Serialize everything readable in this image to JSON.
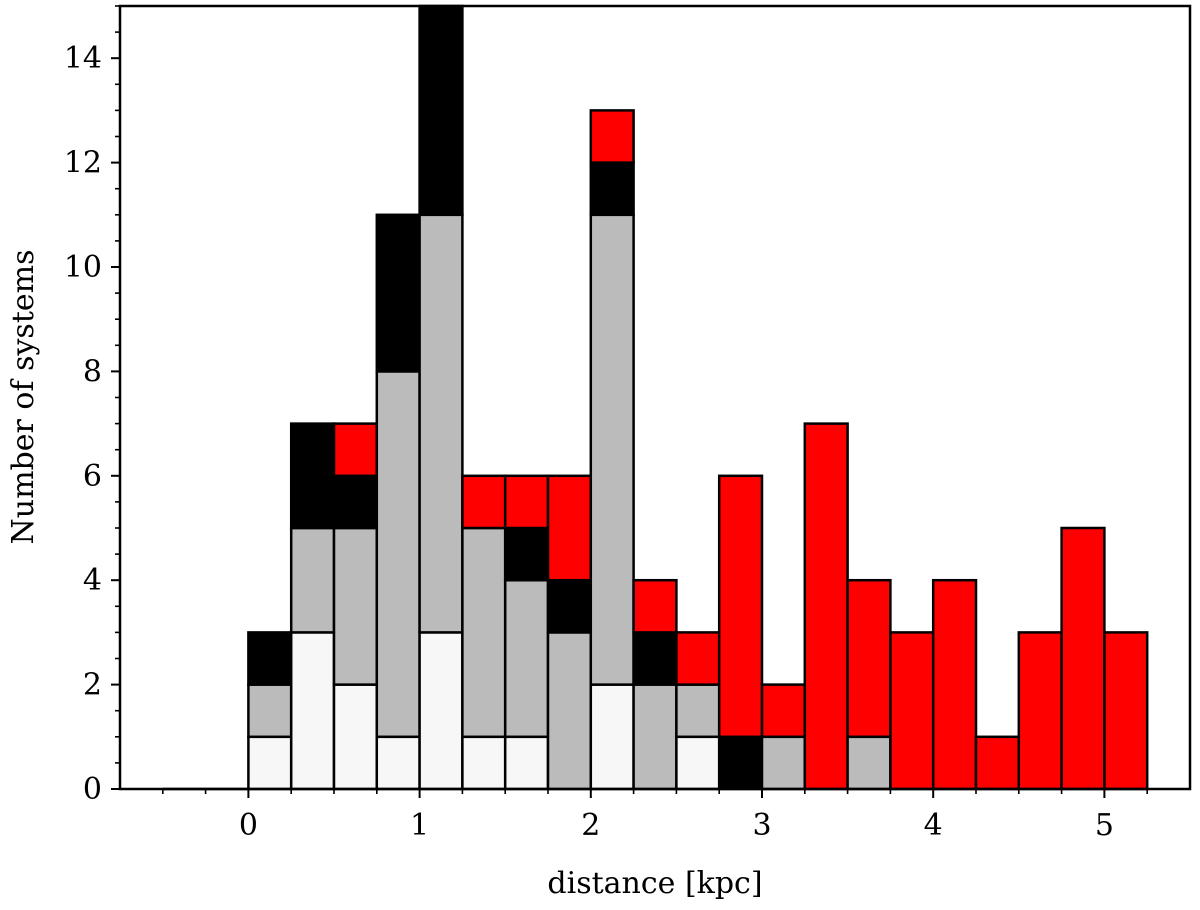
{
  "chart_data": {
    "type": "bar",
    "stacked": true,
    "xlabel": "distance [kpc]",
    "ylabel": "Number of systems",
    "xlim": [
      -0.75,
      5.5
    ],
    "ylim": [
      0,
      15
    ],
    "xticks": [
      0,
      1,
      2,
      3,
      4,
      5
    ],
    "yticks": [
      0,
      2,
      4,
      6,
      8,
      10,
      12,
      14
    ],
    "bin_width": 0.25,
    "bin_starts": [
      -0.5,
      -0.25,
      0,
      0.25,
      0.5,
      0.75,
      1,
      1.25,
      1.5,
      1.75,
      2,
      2.25,
      2.5,
      2.75,
      3,
      3.25,
      3.5,
      3.75,
      4,
      4.25,
      4.5,
      4.75,
      5
    ],
    "series": [
      {
        "color": "#f7f7f7",
        "values": [
          0,
          0,
          1,
          3,
          2,
          1,
          3,
          1,
          1,
          0,
          2,
          0,
          1,
          0,
          0,
          0,
          0,
          0,
          0,
          0,
          0,
          0,
          0
        ]
      },
      {
        "color": "#bbbbbb",
        "values": [
          0,
          0,
          1,
          2,
          3,
          7,
          8,
          4,
          3,
          3,
          9,
          2,
          1,
          0,
          1,
          0,
          1,
          0,
          0,
          0,
          0,
          0,
          0
        ]
      },
      {
        "color": "#000000",
        "values": [
          0,
          0,
          1,
          2,
          1,
          3,
          4,
          0,
          1,
          1,
          1,
          1,
          0,
          1,
          0,
          0,
          0,
          0,
          0,
          0,
          0,
          0,
          0
        ]
      },
      {
        "color": "#ff0000",
        "values": [
          0,
          0,
          0,
          0,
          1,
          0,
          0,
          1,
          1,
          2,
          1,
          1,
          1,
          5,
          1,
          7,
          3,
          3,
          4,
          1,
          3,
          5,
          3
        ]
      }
    ],
    "grid": false,
    "legend": false
  }
}
